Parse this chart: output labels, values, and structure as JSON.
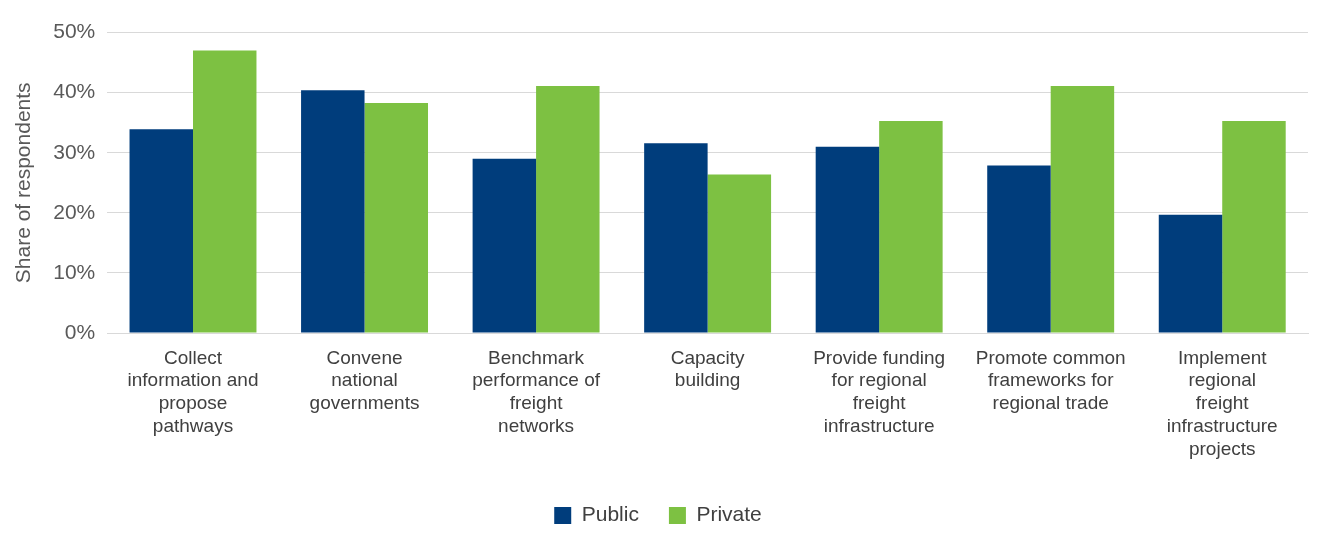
{
  "chart_data": {
    "type": "bar",
    "ylabel": "Share of respondents",
    "categories": [
      "Collect information and propose pathways",
      "Convene national governments",
      "Benchmark performance of freight networks",
      "Capacity building",
      "Provide funding for regional freight infrastructure",
      "Promote common frameworks for regional trade",
      "Implement regional freight infrastructure projects"
    ],
    "series": [
      {
        "name": "Public",
        "color": "#003d7c",
        "values": [
          33.9,
          40.4,
          29.0,
          31.6,
          31.0,
          27.9,
          19.7
        ]
      },
      {
        "name": "Private",
        "color": "#7dc142",
        "values": [
          47.0,
          38.3,
          41.1,
          26.4,
          35.3,
          41.1,
          35.3
        ]
      }
    ],
    "ylim": [
      0,
      50
    ],
    "yticks": [
      {
        "value": 0,
        "label": "0%"
      },
      {
        "value": 10,
        "label": "10%"
      },
      {
        "value": 20,
        "label": "20%"
      },
      {
        "value": 30,
        "label": "30%"
      },
      {
        "value": 40,
        "label": "40%"
      },
      {
        "value": 50,
        "label": "50%"
      }
    ],
    "grid": "y",
    "legend": "bottom"
  }
}
